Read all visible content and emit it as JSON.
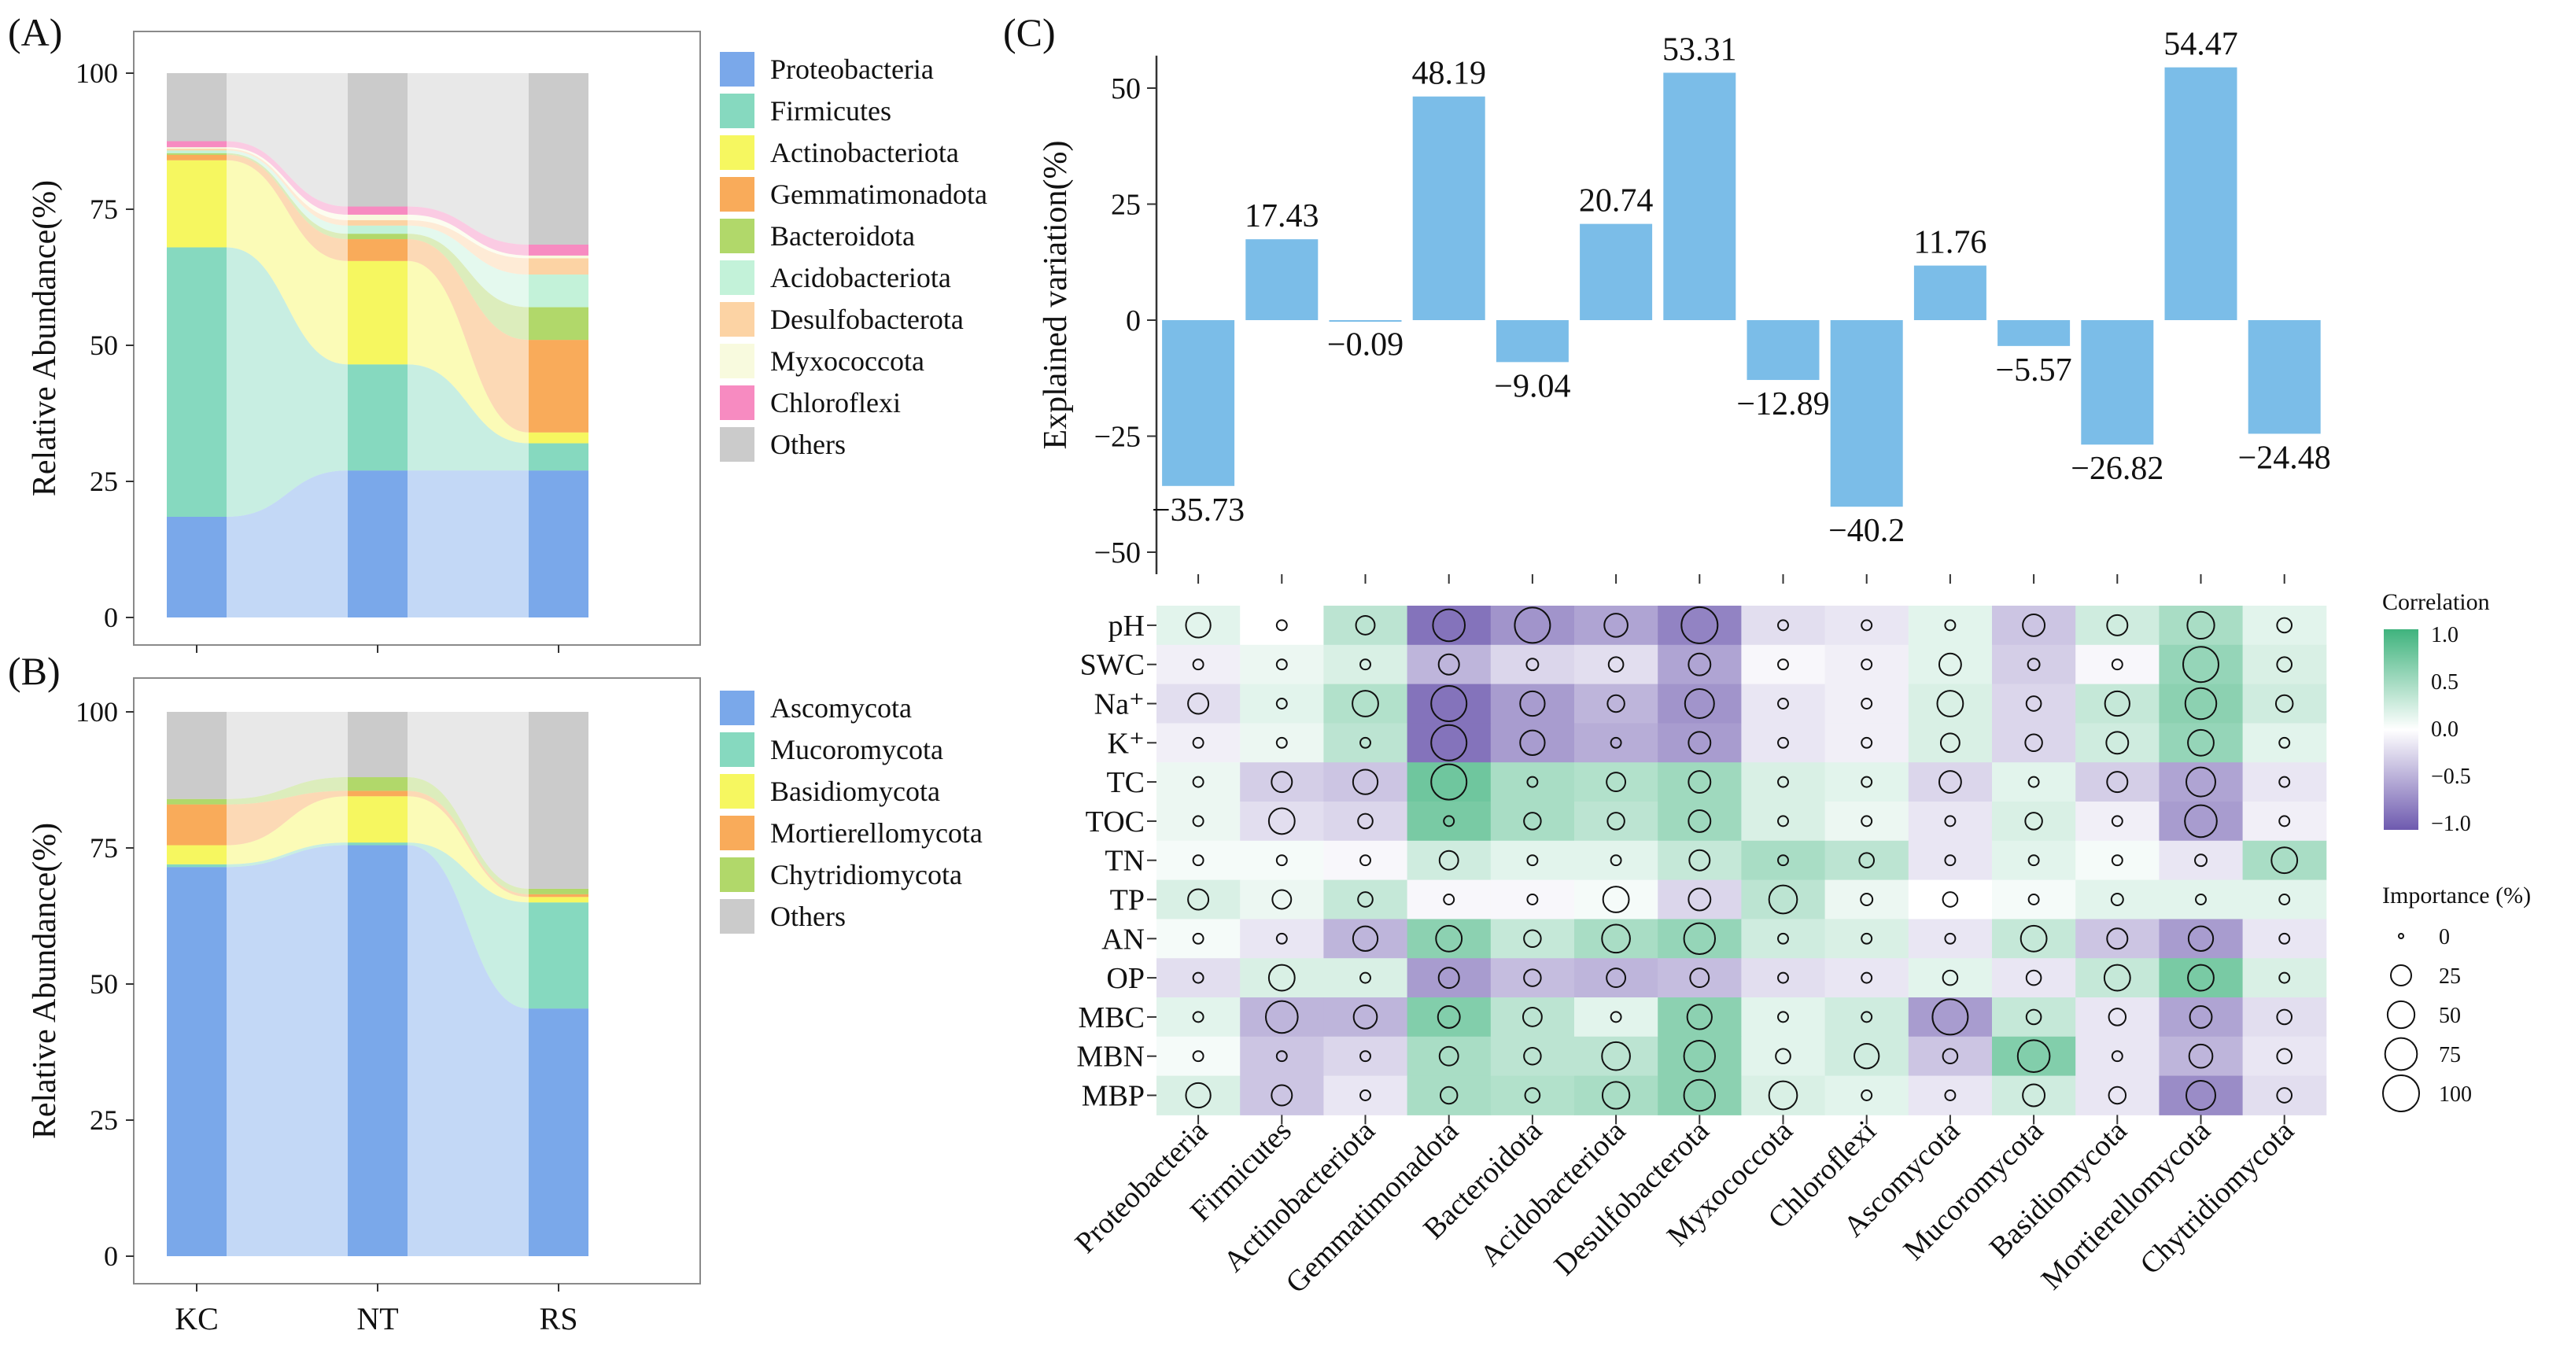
{
  "colors": {
    "stream_alpha_note": "ribbons are the same colours drawn lighter",
    "A": [
      "#7aa8ea",
      "#86d9bf",
      "#f6f760",
      "#f9ab5a",
      "#b1d86a",
      "#c3f2d9",
      "#fcd3a4",
      "#f8fade",
      "#f78bc1",
      "#cbcbcb"
    ],
    "B": [
      "#7aa8ea",
      "#86d9bf",
      "#f6f760",
      "#f9ab5a",
      "#b1d86a",
      "#cbcbcb"
    ],
    "bar_fill": "#7bbde8",
    "heat_pos": "#3fb37d",
    "heat_neg": "#6e5aaf"
  },
  "chart_data": [
    {
      "id": "A",
      "panel_label": "(A)",
      "type": "area",
      "ylabel": "Relative Abundance(%)",
      "ylim": [
        0,
        100
      ],
      "yticks": [
        "0",
        "25",
        "50",
        "75",
        "100"
      ],
      "categories": [
        "KC",
        "NT",
        "RS"
      ],
      "series": [
        {
          "name": "Proteobacteria",
          "values": [
            18.5,
            27.0,
            27.0
          ]
        },
        {
          "name": "Firmicutes",
          "values": [
            49.5,
            19.5,
            5.0
          ]
        },
        {
          "name": "Actinobacteriota",
          "values": [
            16.0,
            19.0,
            2.0
          ]
        },
        {
          "name": "Gemmatimonadota",
          "values": [
            1.0,
            4.0,
            17.0
          ]
        },
        {
          "name": "Bacteroidota",
          "values": [
            0.3,
            1.0,
            6.0
          ]
        },
        {
          "name": "Acidobacteriota",
          "values": [
            0.5,
            1.5,
            6.0
          ]
        },
        {
          "name": "Desulfobacterota",
          "values": [
            0.3,
            1.0,
            3.0
          ]
        },
        {
          "name": "Myxococcota",
          "values": [
            0.3,
            1.0,
            0.5
          ]
        },
        {
          "name": "Chloroflexi",
          "values": [
            1.1,
            1.5,
            2.0
          ]
        },
        {
          "name": "Others",
          "values": [
            12.5,
            24.5,
            31.5
          ]
        }
      ]
    },
    {
      "id": "B",
      "panel_label": "(B)",
      "type": "area",
      "ylabel": "Relative Abundance(%)",
      "ylim": [
        0,
        100
      ],
      "yticks": [
        "0",
        "25",
        "50",
        "75",
        "100"
      ],
      "categories": [
        "KC",
        "NT",
        "RS"
      ],
      "series": [
        {
          "name": "Ascomycota",
          "values": [
            71.5,
            75.5,
            45.5
          ]
        },
        {
          "name": "Mucoromycota",
          "values": [
            0.5,
            0.5,
            19.5
          ]
        },
        {
          "name": "Basidiomycota",
          "values": [
            3.5,
            8.5,
            1.0
          ]
        },
        {
          "name": "Mortierellomycota",
          "values": [
            7.5,
            1.0,
            0.5
          ]
        },
        {
          "name": "Chytridiomycota",
          "values": [
            1.0,
            2.5,
            1.0
          ]
        },
        {
          "name": "Others",
          "values": [
            16.0,
            12.0,
            32.5
          ]
        }
      ]
    },
    {
      "id": "C",
      "panel_label": "(C)",
      "type": "bar",
      "ylabel": "Explained variation(%)",
      "ylim": [
        -55,
        57
      ],
      "yticks": [
        -50,
        -25,
        0,
        25,
        50
      ],
      "ytick_labels": [
        "−50",
        "−25",
        "0",
        "25",
        "50"
      ],
      "categories": [
        "Proteobacteria",
        "Firmicutes",
        "Actinobacteriota",
        "Gemmatimonadota",
        "Bacteroidota",
        "Acidobacteriota",
        "Desulfobacterota",
        "Myxococcota",
        "Chloroflexi",
        "Ascomycota",
        "Mucoromycota",
        "Basidiomycota",
        "Mortierellomycota",
        "Chytridiomycota"
      ],
      "values": [
        -35.73,
        17.43,
        -0.09,
        48.19,
        -9.04,
        20.74,
        53.31,
        -12.89,
        -40.2,
        11.76,
        -5.57,
        -26.82,
        54.47,
        -24.48
      ],
      "value_labels": [
        "−35.73",
        "17.43",
        "−0.09",
        "48.19",
        "−9.04",
        "20.74",
        "53.31",
        "−12.89",
        "−40.2",
        "11.76",
        "−5.57",
        "−26.82",
        "54.47",
        "−24.48"
      ]
    },
    {
      "id": "C-heatmap",
      "type": "heatmap",
      "rows": [
        "pH",
        "SWC",
        "Na⁺",
        "K⁺",
        "TC",
        "TOC",
        "TN",
        "TP",
        "AN",
        "OP",
        "MBC",
        "MBN",
        "MBP"
      ],
      "columns": [
        "Proteobacteria",
        "Firmicutes",
        "Actinobacteriota",
        "Gemmatimonadota",
        "Bacteroidota",
        "Acidobacteriota",
        "Desulfobacterota",
        "Myxococcota",
        "Chloroflexi",
        "Ascomycota",
        "Mucoromycota",
        "Basidiomycota",
        "Mortierellomycota",
        "Chytridiomycota"
      ],
      "correlation": [
        [
          0.15,
          0.0,
          0.35,
          -0.85,
          -0.65,
          -0.55,
          -0.75,
          -0.2,
          -0.15,
          0.15,
          -0.35,
          0.25,
          0.45,
          0.15
        ],
        [
          -0.1,
          0.1,
          0.2,
          -0.45,
          -0.25,
          -0.2,
          -0.55,
          -0.05,
          -0.1,
          0.15,
          -0.3,
          -0.05,
          0.55,
          0.2
        ],
        [
          -0.2,
          0.15,
          0.4,
          -0.85,
          -0.6,
          -0.45,
          -0.65,
          -0.15,
          -0.1,
          0.2,
          -0.25,
          0.3,
          0.6,
          0.25
        ],
        [
          -0.1,
          0.1,
          0.35,
          -0.85,
          -0.6,
          -0.5,
          -0.6,
          -0.15,
          -0.1,
          0.2,
          -0.25,
          0.25,
          0.55,
          0.15
        ],
        [
          0.1,
          -0.3,
          -0.35,
          0.75,
          0.45,
          0.4,
          0.5,
          0.2,
          0.15,
          -0.25,
          0.15,
          -0.3,
          -0.55,
          -0.15
        ],
        [
          0.1,
          -0.2,
          -0.25,
          0.7,
          0.45,
          0.35,
          0.5,
          0.2,
          0.1,
          -0.15,
          0.2,
          -0.1,
          -0.6,
          -0.1
        ],
        [
          0.05,
          0.05,
          -0.05,
          0.25,
          0.15,
          0.15,
          0.3,
          0.45,
          0.35,
          -0.15,
          0.15,
          0.05,
          -0.15,
          0.45
        ],
        [
          0.2,
          0.1,
          0.3,
          -0.05,
          -0.05,
          0.05,
          -0.25,
          0.35,
          0.1,
          0.0,
          0.05,
          0.15,
          0.15,
          0.15
        ],
        [
          0.05,
          -0.15,
          -0.45,
          0.6,
          0.3,
          0.45,
          0.55,
          0.25,
          0.2,
          -0.15,
          0.3,
          -0.35,
          -0.6,
          -0.15
        ],
        [
          -0.2,
          0.2,
          0.2,
          -0.6,
          -0.4,
          -0.45,
          -0.4,
          -0.2,
          -0.15,
          0.15,
          -0.15,
          0.3,
          0.7,
          0.2
        ],
        [
          0.15,
          -0.45,
          -0.45,
          0.65,
          0.35,
          0.15,
          0.6,
          0.15,
          0.25,
          -0.6,
          0.3,
          -0.15,
          -0.55,
          -0.2
        ],
        [
          0.05,
          -0.35,
          -0.25,
          0.45,
          0.35,
          0.35,
          0.6,
          0.15,
          0.25,
          -0.35,
          0.65,
          -0.15,
          -0.45,
          -0.15
        ],
        [
          0.2,
          -0.35,
          -0.15,
          0.45,
          0.4,
          0.45,
          0.6,
          0.2,
          0.15,
          -0.15,
          0.25,
          -0.15,
          -0.7,
          -0.2
        ]
      ],
      "importance": [
        [
          40,
          3,
          20,
          75,
          95,
          35,
          100,
          3,
          3,
          3,
          30,
          25,
          50,
          10
        ],
        [
          3,
          3,
          3,
          25,
          5,
          10,
          30,
          3,
          3,
          30,
          5,
          3,
          95,
          10
        ],
        [
          25,
          3,
          45,
          95,
          40,
          15,
          60,
          3,
          3,
          45,
          10,
          40,
          70,
          15
        ],
        [
          3,
          3,
          3,
          95,
          40,
          3,
          30,
          3,
          3,
          20,
          15,
          30,
          45,
          3
        ],
        [
          3,
          25,
          40,
          95,
          3,
          20,
          30,
          3,
          3,
          30,
          3,
          25,
          60,
          3
        ],
        [
          3,
          45,
          10,
          3,
          15,
          15,
          30,
          3,
          3,
          3,
          15,
          3,
          75,
          3
        ],
        [
          3,
          3,
          3,
          20,
          3,
          3,
          25,
          3,
          10,
          3,
          3,
          3,
          5,
          45
        ],
        [
          25,
          20,
          10,
          3,
          3,
          45,
          30,
          55,
          5,
          10,
          3,
          5,
          3,
          3
        ],
        [
          3,
          3,
          40,
          45,
          15,
          55,
          70,
          3,
          3,
          3,
          45,
          25,
          40,
          3
        ],
        [
          3,
          45,
          3,
          25,
          15,
          20,
          20,
          3,
          3,
          10,
          10,
          45,
          45,
          3
        ],
        [
          3,
          75,
          35,
          30,
          20,
          3,
          40,
          3,
          3,
          95,
          10,
          15,
          30,
          10
        ],
        [
          3,
          3,
          3,
          20,
          15,
          55,
          70,
          10,
          40,
          10,
          75,
          3,
          35,
          10
        ],
        [
          40,
          25,
          3,
          15,
          10,
          50,
          70,
          55,
          3,
          3,
          30,
          15,
          60,
          10
        ]
      ],
      "legend": {
        "correlation_title": "Correlation",
        "correlation_ticks": [
          "1.0",
          "0.5",
          "0.0",
          "−0.5",
          "−1.0"
        ],
        "importance_title": "Importance (%)",
        "importance_ticks": [
          "0",
          "25",
          "50",
          "75",
          "100"
        ]
      }
    }
  ],
  "legendA_labels": [
    "Proteobacteria",
    "Firmicutes",
    "Actinobacteriota",
    "Gemmatimonadota",
    "Bacteroidota",
    "Acidobacteriota",
    "Desulfobacterota",
    "Myxococcota",
    "Chloroflexi",
    "Others"
  ],
  "legendB_labels": [
    "Ascomycota",
    "Mucoromycota",
    "Basidiomycota",
    "Mortierellomycota",
    "Chytridiomycota",
    "Others"
  ]
}
